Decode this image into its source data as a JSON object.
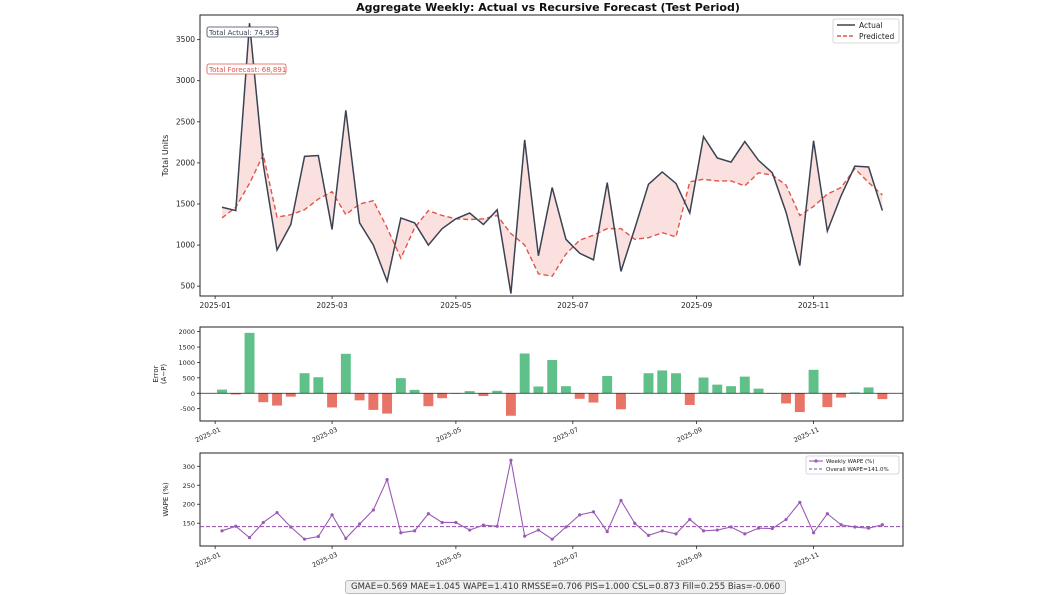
{
  "title": "Aggregate Weekly: Actual vs Recursive Forecast (Test Period)",
  "colors": {
    "actual": "#3b4252",
    "predicted": "#e0554a",
    "fill": "#f8d4d2",
    "pos_error": "#5fc08a",
    "neg_error": "#e87468",
    "wape": "#9b59b6",
    "overall": "#8e44ad"
  },
  "footer": "GMAE=0.569  MAE=1.045  WAPE=1.410  RMSSE=0.706  PIS=1.000  CSL=0.873  Fill=0.255  Bias=-0.060",
  "chart_data": [
    {
      "type": "line",
      "ylabel": "Total Units",
      "ylim": [
        380,
        3800
      ],
      "yticks": [
        500,
        1000,
        1500,
        2000,
        2500,
        3000,
        3500
      ],
      "x_tick_labels": [
        "2025-01",
        "2025-03",
        "2025-05",
        "2025-07",
        "2025-09",
        "2025-11"
      ],
      "x_tick_index": [
        -0.5,
        8,
        17,
        25.5,
        34.5,
        43
      ],
      "xlim": [
        -1.6,
        49.5
      ],
      "annotations": {
        "total_actual": "Total Actual: 74,953",
        "total_forecast": "Total Forecast: 68,891"
      },
      "legend": {
        "placement": "top-right",
        "items": [
          "Actual",
          "Predicted"
        ]
      },
      "series": [
        {
          "name": "Actual",
          "values": [
            1460,
            1420,
            3700,
            1980,
            940,
            1250,
            2080,
            2090,
            1190,
            2640,
            1270,
            1000,
            560,
            1330,
            1270,
            1000,
            1200,
            1320,
            1390,
            1250,
            1430,
            410,
            2280,
            870,
            1700,
            1070,
            900,
            820,
            1760,
            680,
            1200,
            1740,
            1890,
            1750,
            1390,
            2320,
            2060,
            2010,
            2260,
            2030,
            1880,
            1400,
            750,
            2270,
            1170,
            1600,
            1960,
            1950,
            1420
          ]
        },
        {
          "name": "Predicted",
          "values": [
            1330,
            1460,
            1750,
            2100,
            1340,
            1370,
            1430,
            1560,
            1650,
            1370,
            1500,
            1540,
            1210,
            840,
            1210,
            1420,
            1360,
            1320,
            1310,
            1320,
            1360,
            1140,
            1000,
            650,
            620,
            890,
            1060,
            1120,
            1200,
            1200,
            1070,
            1090,
            1150,
            1100,
            1770,
            1800,
            1780,
            1780,
            1720,
            1880,
            1850,
            1730,
            1360,
            1470,
            1620,
            1700,
            1930,
            1760,
            1610
          ]
        }
      ]
    },
    {
      "type": "bar",
      "ylabel": "Error\n(A−P)",
      "ylim": [
        -900,
        2150
      ],
      "yticks": [
        -500,
        0,
        500,
        1000,
        1500,
        2000
      ],
      "x_tick_labels": [
        "2025-01",
        "2025-03",
        "2025-05",
        "2025-07",
        "2025-09",
        "2025-11"
      ],
      "values": [
        120,
        -40,
        1960,
        -290,
        -400,
        -110,
        650,
        520,
        -460,
        1280,
        -230,
        -540,
        -660,
        490,
        110,
        -420,
        -160,
        0,
        70,
        -90,
        80,
        -730,
        1290,
        220,
        1080,
        230,
        -180,
        -300,
        560,
        -520,
        0,
        650,
        740,
        650,
        -380,
        510,
        280,
        230,
        540,
        150,
        0,
        -330,
        -610,
        760,
        -450,
        -140,
        30,
        190,
        -190
      ]
    },
    {
      "type": "line",
      "ylabel": "WAPE (%)",
      "ylim": [
        90,
        335
      ],
      "yticks": [
        150,
        200,
        250,
        300
      ],
      "x_tick_labels": [
        "2025-01",
        "2025-03",
        "2025-05",
        "2025-07",
        "2025-09",
        "2025-11"
      ],
      "legend": {
        "placement": "top-right",
        "items": [
          "Weekly WAPE (%)",
          "Overall WAPE=141.0%"
        ]
      },
      "overall_wape": 141.0,
      "series": [
        {
          "name": "Weekly WAPE (%)",
          "values": [
            130,
            142,
            112,
            152,
            178,
            140,
            108,
            115,
            172,
            110,
            148,
            185,
            265,
            125,
            130,
            175,
            152,
            152,
            132,
            145,
            142,
            316,
            116,
            132,
            108,
            140,
            172,
            180,
            128,
            210,
            150,
            118,
            130,
            122,
            160,
            130,
            132,
            140,
            122,
            137,
            136,
            160,
            205,
            125,
            175,
            146,
            140,
            137,
            146
          ]
        }
      ]
    }
  ]
}
